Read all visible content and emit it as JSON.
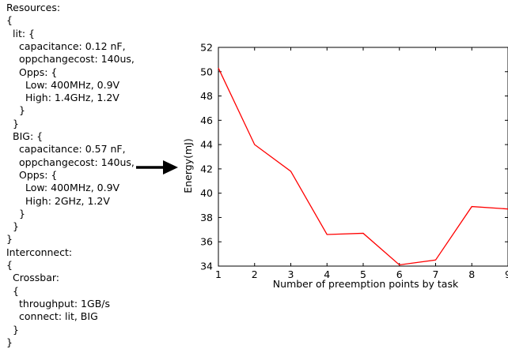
{
  "config_text": [
    {
      "text": "Resources:",
      "indent": 0
    },
    {
      "text": "{",
      "indent": 0
    },
    {
      "text": "lit: {",
      "indent": 1
    },
    {
      "text": "capacitance: 0.12 nF,",
      "indent": 2
    },
    {
      "text": "oppchangecost: 140us,",
      "indent": 2
    },
    {
      "text": "Opps: {",
      "indent": 2
    },
    {
      "text": "Low: 400MHz, 0.9V",
      "indent": 3
    },
    {
      "text": "High: 1.4GHz, 1.2V",
      "indent": 3
    },
    {
      "text": "}",
      "indent": 2
    },
    {
      "text": "}",
      "indent": 1
    },
    {
      "text": "BIG: {",
      "indent": 1
    },
    {
      "text": "capacitance: 0.57 nF,",
      "indent": 2
    },
    {
      "text": "oppchangecost: 140us,",
      "indent": 2
    },
    {
      "text": "Opps: {",
      "indent": 2
    },
    {
      "text": "Low: 400MHz, 0.9V",
      "indent": 3
    },
    {
      "text": "High: 2GHz, 1.2V",
      "indent": 3
    },
    {
      "text": "}",
      "indent": 2
    },
    {
      "text": "}",
      "indent": 1
    },
    {
      "text": "}",
      "indent": 0
    },
    {
      "text": "Interconnect:",
      "indent": 0
    },
    {
      "text": "{",
      "indent": 0
    },
    {
      "text": "Crossbar:",
      "indent": 1
    },
    {
      "text": "{",
      "indent": 1
    },
    {
      "text": "throughput: 1GB/s",
      "indent": 2
    },
    {
      "text": "connect: lit, BIG",
      "indent": 2
    },
    {
      "text": "}",
      "indent": 1
    },
    {
      "text": "}",
      "indent": 0
    }
  ],
  "chart_data": {
    "type": "line",
    "title": "",
    "xlabel": "Number of preemption points by task",
    "ylabel": "Energy(mJ)",
    "x": [
      1,
      2,
      3,
      4,
      5,
      6,
      7,
      8,
      9
    ],
    "series": [
      {
        "color": "#ff0000",
        "values": [
          50.3,
          44.0,
          41.8,
          36.6,
          36.7,
          34.1,
          34.5,
          38.9,
          38.7
        ]
      }
    ],
    "xlim": [
      1,
      9
    ],
    "ylim": [
      34,
      52
    ],
    "xticks": [
      "1",
      "2",
      "3",
      "4",
      "5",
      "6",
      "7",
      "8",
      "9"
    ],
    "yticks": [
      "34",
      "36",
      "38",
      "40",
      "42",
      "44",
      "46",
      "48",
      "50",
      "52"
    ],
    "grid": false,
    "legend": "none"
  }
}
